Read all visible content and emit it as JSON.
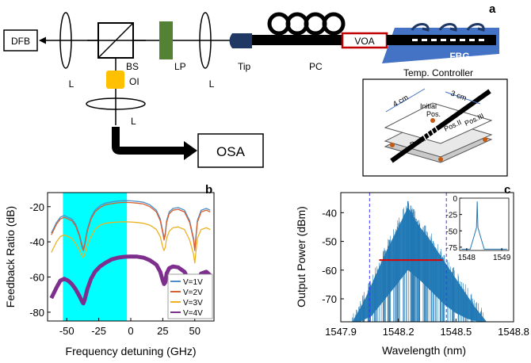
{
  "panel_labels": {
    "a": "a",
    "b": "b",
    "c": "c"
  },
  "setup": {
    "dfb": "DFB",
    "lens_left": "L",
    "bs": "BS",
    "lp": "LP",
    "lens_right": "L",
    "tip": "Tip",
    "pc": "PC",
    "voa": "VOA",
    "fbg": "FBG",
    "oi": "OI",
    "lens_bottom": "L",
    "osa": "OSA",
    "temp_controller": "Temp. Controller"
  },
  "inset_diagram": {
    "dim_4cm": "4 cm",
    "dim_3cm": "3 cm",
    "initial_pos": "Initial",
    "initial_pos2": "Pos.",
    "pos1": "Pos.I",
    "pos2": "Pos.II",
    "pos3": "Pos.III"
  },
  "chart_data": [
    {
      "type": "line",
      "xlabel": "Frequency detuning (GHz)",
      "ylabel": "Feedback Ratio (dB)",
      "xlim": [
        -65,
        65
      ],
      "ylim": [
        -85,
        -12
      ],
      "xticks": [
        -50,
        -25,
        0,
        25,
        50
      ],
      "yticks": [
        -20,
        -40,
        -60,
        -80
      ],
      "shaded_region": [
        -53,
        -3
      ],
      "legend": "bottom-right",
      "series": [
        {
          "name": "V=1V",
          "color": "#4a8fc9",
          "x": [
            -62,
            -58,
            -55,
            -52,
            -49,
            -46,
            -43,
            -40,
            -38,
            -37,
            -36,
            -34,
            -31,
            -28,
            -24,
            -20,
            -15,
            -10,
            -5,
            0,
            5,
            10,
            15,
            20,
            23,
            25,
            26,
            27,
            28,
            30,
            33,
            37,
            42,
            46,
            49,
            50,
            51,
            52,
            55,
            59,
            62
          ],
          "y": [
            -35,
            -29,
            -26,
            -25,
            -26,
            -27,
            -30,
            -36,
            -42,
            -44,
            -41,
            -33,
            -26,
            -22,
            -19.5,
            -18,
            -17.3,
            -16.8,
            -16.6,
            -16.7,
            -17,
            -17.5,
            -19,
            -22,
            -27,
            -34,
            -38,
            -35,
            -28,
            -23,
            -21,
            -20.5,
            -22,
            -28,
            -38,
            -44,
            -36,
            -28,
            -22,
            -21,
            -22
          ]
        },
        {
          "name": "V=2V",
          "color": "#d95f30",
          "x": [
            -62,
            -58,
            -55,
            -52,
            -49,
            -46,
            -43,
            -40,
            -38,
            -37,
            -36,
            -34,
            -31,
            -28,
            -24,
            -20,
            -15,
            -10,
            -5,
            0,
            5,
            10,
            15,
            20,
            23,
            25,
            26,
            27,
            28,
            30,
            33,
            37,
            42,
            46,
            49,
            50,
            51,
            52,
            55,
            59,
            62
          ],
          "y": [
            -36,
            -30,
            -27,
            -26,
            -27,
            -28,
            -31,
            -37,
            -43,
            -45,
            -42,
            -34,
            -27,
            -23,
            -20.5,
            -19,
            -18.3,
            -17.8,
            -17.6,
            -17.7,
            -18,
            -18.5,
            -20,
            -23,
            -28,
            -35,
            -39,
            -36,
            -29,
            -24,
            -22,
            -21.5,
            -23,
            -29,
            -39,
            -45,
            -37,
            -29,
            -23,
            -22,
            -23
          ]
        },
        {
          "name": "V=3V",
          "color": "#edb120",
          "x": [
            -62,
            -58,
            -55,
            -52,
            -49,
            -46,
            -43,
            -40,
            -38,
            -37,
            -36,
            -34,
            -31,
            -28,
            -24,
            -20,
            -15,
            -10,
            -5,
            0,
            5,
            10,
            15,
            20,
            23,
            25,
            26,
            27,
            28,
            30,
            33,
            37,
            42,
            46,
            49,
            50,
            51,
            52,
            55,
            59,
            62
          ],
          "y": [
            -46,
            -40,
            -37,
            -36,
            -37,
            -38,
            -41,
            -45,
            -48,
            -49,
            -47,
            -42,
            -37,
            -33,
            -30.5,
            -29.5,
            -29,
            -28.7,
            -28.6,
            -28.7,
            -29,
            -29.5,
            -30.5,
            -33,
            -37,
            -43,
            -45,
            -43,
            -38,
            -34,
            -32,
            -31.5,
            -33,
            -39,
            -47,
            -52,
            -45,
            -38,
            -33,
            -32,
            -33
          ]
        },
        {
          "name": "V=4V",
          "color": "#7e2f8e",
          "x": [
            -62,
            -58,
            -55,
            -52,
            -49,
            -46,
            -43,
            -40,
            -38,
            -37,
            -36,
            -34,
            -31,
            -28,
            -24,
            -20,
            -15,
            -10,
            -5,
            0,
            5,
            10,
            15,
            20,
            23,
            25,
            26,
            27,
            28,
            30,
            33,
            37,
            42,
            46,
            49,
            50,
            51,
            52,
            55,
            59,
            62
          ],
          "y": [
            -72,
            -66,
            -62,
            -61,
            -62,
            -64,
            -67,
            -71,
            -74,
            -75,
            -73,
            -67,
            -61,
            -57,
            -54,
            -52,
            -50,
            -49,
            -48.5,
            -48.3,
            -48.4,
            -49,
            -50.5,
            -53,
            -57,
            -62,
            -64,
            -63,
            -58,
            -55,
            -54,
            -54.5,
            -57,
            -63,
            -71,
            -76,
            -70,
            -62,
            -58,
            -57,
            -59
          ]
        }
      ]
    },
    {
      "type": "area",
      "xlabel": "Wavelength (nm)",
      "ylabel": "Output Power (dBm)",
      "xlim": [
        1547.9,
        1548.8
      ],
      "ylim": [
        -78,
        -33
      ],
      "xticks": [
        1547.9,
        1548.2,
        1548.5,
        1548.8
      ],
      "xtick_labels": [
        "1547.9",
        "1548.2",
        "1548.5",
        "1548.8"
      ],
      "yticks": [
        -40,
        -50,
        -60,
        -70
      ],
      "color": "#1f77b4",
      "peak": {
        "x": 1548.25,
        "y": -36
      },
      "band_upper": {
        "x": [
          1547.96,
          1548.02,
          1548.08,
          1548.14,
          1548.2,
          1548.25,
          1548.3,
          1548.36,
          1548.42,
          1548.48,
          1548.54,
          1548.6,
          1548.66
        ],
        "y": [
          -78,
          -71,
          -62,
          -53,
          -45,
          -38,
          -44,
          -49,
          -55,
          -61,
          -67,
          -73,
          -78
        ]
      },
      "band_lower": {
        "x": [
          1548.0,
          1548.06,
          1548.12,
          1548.18,
          1548.25,
          1548.32,
          1548.38,
          1548.44,
          1548.5,
          1548.56,
          1548.62
        ],
        "y": [
          -78,
          -76,
          -71,
          -66,
          -60,
          -64,
          -68,
          -72,
          -75,
          -77,
          -78
        ]
      },
      "dashed_markers_x": [
        1548.05,
        1548.45
      ],
      "red_line": {
        "x": [
          1548.1,
          1548.43
        ],
        "y": -56.5
      },
      "inset": {
        "xlim": [
          1547.8,
          1549.2
        ],
        "ylim": [
          -80,
          0
        ],
        "xticks": [
          1548,
          1549
        ],
        "yticks": [
          0,
          -25,
          -50,
          -75
        ],
        "peak": {
          "x": 1548.3,
          "y": -5
        },
        "baseline": -78,
        "pedestal": -60
      }
    }
  ]
}
